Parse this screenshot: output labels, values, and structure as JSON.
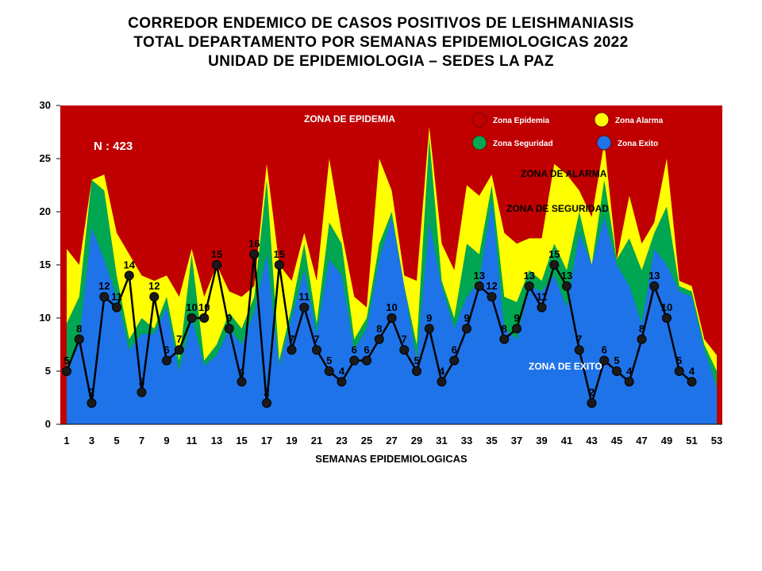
{
  "chart_data": {
    "type": "area",
    "title_lines": [
      "CORREDOR ENDEMICO DE CASOS POSITIVOS DE LEISHMANIASIS",
      "TOTAL DEPARTAMENTO POR SEMANAS EPIDEMIOLOGICAS 2022",
      "UNIDAD DE EPIDEMIOLOGIA – SEDES LA PAZ"
    ],
    "xlabel": "SEMANAS EPIDEMIOLOGICAS",
    "ylabel": "",
    "ylim": [
      0,
      30
    ],
    "yticks": [
      0,
      5,
      10,
      15,
      20,
      25,
      30
    ],
    "xlim": [
      1,
      53
    ],
    "xticks": [
      1,
      3,
      5,
      7,
      9,
      11,
      13,
      15,
      17,
      19,
      21,
      23,
      25,
      27,
      29,
      31,
      33,
      35,
      37,
      39,
      41,
      43,
      45,
      47,
      49,
      51,
      53
    ],
    "annotation_n": "N : 423",
    "zone_labels": {
      "epidemia": "ZONA DE EPIDEMIA",
      "alarma": "ZONA DE ALARMA",
      "seguridad": "ZONA DE  SEGURIDAD",
      "exito": "ZONA DE  EXITO"
    },
    "legend": [
      {
        "name": "Zona Epidemia",
        "color": "#c00000"
      },
      {
        "name": "Zona Alarma",
        "color": "#ffff00"
      },
      {
        "name": "Zona Seguridad",
        "color": "#00a651"
      },
      {
        "name": "Zona Exito",
        "color": "#1e73e8"
      }
    ],
    "colors": {
      "epidemia": "#c00000",
      "alarma": "#ffff00",
      "seguridad": "#00a651",
      "exito": "#1e73e8",
      "cases_line": "#000000",
      "cases_marker": "#1a1a1a"
    },
    "zone_x": [
      1,
      2,
      3,
      4,
      5,
      6,
      7,
      8,
      9,
      10,
      11,
      12,
      13,
      14,
      15,
      16,
      17,
      18,
      19,
      20,
      21,
      22,
      23,
      24,
      25,
      26,
      27,
      28,
      29,
      30,
      31,
      32,
      33,
      34,
      35,
      36,
      37,
      38,
      39,
      40,
      41,
      42,
      43,
      44,
      45,
      46,
      47,
      48,
      49,
      50,
      51,
      52,
      53
    ],
    "exito": [
      5,
      8,
      18.5,
      15.5,
      12,
      7,
      8.5,
      8.5,
      11,
      5,
      10,
      5.5,
      6.5,
      9,
      7.5,
      10.5,
      16,
      5.5,
      10,
      14.5,
      8.5,
      15.5,
      14,
      7,
      9,
      15.5,
      19.5,
      13,
      6,
      19,
      13,
      9,
      12,
      13.5,
      21,
      9,
      8,
      13,
      12.5,
      14,
      11,
      18,
      15,
      19.5,
      15,
      13,
      9.5,
      16.5,
      15,
      12.5,
      12,
      7,
      3.5
    ],
    "seguridad": [
      9.5,
      12,
      23,
      22,
      14,
      8,
      10,
      9,
      12,
      6,
      16,
      6,
      7.5,
      10.5,
      9,
      12,
      23,
      6,
      11,
      17,
      9.5,
      19,
      17,
      8,
      10,
      17,
      20,
      13,
      7.5,
      27,
      13.5,
      10,
      17,
      16,
      22.5,
      12,
      11.5,
      14.5,
      13.5,
      17,
      14.5,
      20,
      15,
      23,
      15.5,
      17.5,
      14.5,
      18,
      20.5,
      13,
      12.5,
      7.5,
      5
    ],
    "alarma": [
      16.5,
      15,
      23,
      23.5,
      18,
      16,
      14,
      13.5,
      14,
      12,
      16.5,
      12,
      15,
      12.5,
      12,
      13,
      24.5,
      15,
      13.5,
      18,
      13.5,
      25,
      18,
      12,
      11,
      25,
      22,
      14,
      13.5,
      28,
      17,
      14.5,
      22.5,
      21.5,
      23.5,
      18,
      17,
      17.5,
      17.5,
      24.5,
      23.5,
      22,
      19.5,
      26.5,
      15.5,
      21.5,
      17,
      19,
      25,
      13.5,
      13,
      8,
      6.5
    ],
    "cases_x": [
      1,
      2,
      3,
      4,
      5,
      6,
      7,
      8,
      9,
      10,
      11,
      12,
      13,
      14,
      15,
      16,
      17,
      18,
      19,
      20,
      21,
      22,
      23,
      24,
      25,
      26,
      27,
      28,
      29,
      30,
      31,
      32,
      33,
      34,
      35,
      36,
      37,
      38,
      39,
      40,
      41,
      42,
      43,
      44,
      45,
      46,
      47,
      48,
      49,
      50,
      51
    ],
    "cases": [
      5,
      8,
      2,
      12,
      11,
      14,
      3,
      12,
      6,
      7,
      10,
      10,
      15,
      9,
      4,
      16,
      2,
      15,
      7,
      11,
      7,
      5,
      4,
      6,
      6,
      8,
      10,
      7,
      5,
      9,
      4,
      6,
      9,
      13,
      12,
      8,
      9,
      13,
      11,
      15,
      13,
      7,
      2,
      6,
      5,
      4,
      8,
      13,
      10,
      5,
      4
    ]
  }
}
